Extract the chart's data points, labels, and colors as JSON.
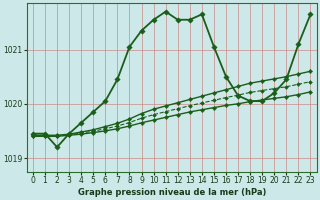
{
  "xlabel": "Graphe pression niveau de la mer (hPa)",
  "background_color": "#cce8e8",
  "line_color": "#1a5e1a",
  "yticks": [
    1019,
    1020,
    1021
  ],
  "xticks": [
    0,
    1,
    2,
    3,
    4,
    5,
    6,
    7,
    8,
    9,
    10,
    11,
    12,
    13,
    14,
    15,
    16,
    17,
    18,
    19,
    20,
    21,
    22,
    23
  ],
  "ylim": [
    1018.75,
    1021.85
  ],
  "xlim": [
    -0.5,
    23.5
  ],
  "series": [
    {
      "x": [
        0,
        1,
        2,
        3,
        4,
        5,
        6,
        7,
        8,
        9,
        10,
        11,
        12,
        13,
        14,
        15,
        16,
        17,
        18,
        19,
        20,
        21,
        22,
        23
      ],
      "y": [
        1019.45,
        1019.45,
        1019.2,
        1019.45,
        1019.65,
        1019.85,
        1020.05,
        1020.45,
        1021.05,
        1021.35,
        1021.55,
        1021.7,
        1021.55,
        1021.55,
        1021.65,
        1021.05,
        1020.5,
        1020.15,
        1020.05,
        1020.05,
        1020.2,
        1020.45,
        1021.1,
        1021.65
      ],
      "linestyle": "-",
      "markersize": 2.8,
      "linewidth": 1.3
    },
    {
      "x": [
        0,
        1,
        2,
        3,
        4,
        5,
        6,
        7,
        8,
        9,
        10,
        11,
        12,
        13,
        14,
        15,
        16,
        17,
        18,
        19,
        20,
        21,
        22,
        23
      ],
      "y": [
        1019.42,
        1019.42,
        1019.42,
        1019.44,
        1019.48,
        1019.52,
        1019.58,
        1019.64,
        1019.72,
        1019.82,
        1019.9,
        1019.96,
        1020.02,
        1020.08,
        1020.14,
        1020.2,
        1020.26,
        1020.32,
        1020.38,
        1020.42,
        1020.46,
        1020.5,
        1020.55,
        1020.6
      ],
      "linestyle": "-",
      "markersize": 2.2,
      "linewidth": 1.0
    },
    {
      "x": [
        0,
        1,
        2,
        3,
        4,
        5,
        6,
        7,
        8,
        9,
        10,
        11,
        12,
        13,
        14,
        15,
        16,
        17,
        18,
        19,
        20,
        21,
        22,
        23
      ],
      "y": [
        1019.4,
        1019.4,
        1019.4,
        1019.42,
        1019.44,
        1019.47,
        1019.5,
        1019.54,
        1019.59,
        1019.65,
        1019.7,
        1019.75,
        1019.8,
        1019.85,
        1019.89,
        1019.93,
        1019.97,
        1020.0,
        1020.04,
        1020.07,
        1020.1,
        1020.13,
        1020.17,
        1020.22
      ],
      "linestyle": "-",
      "markersize": 2.2,
      "linewidth": 1.0
    },
    {
      "x": [
        0,
        1,
        2,
        3,
        4,
        5,
        6,
        7,
        8,
        9,
        10,
        11,
        12,
        13,
        14,
        15,
        16,
        17,
        18,
        19,
        20,
        21,
        22,
        23
      ],
      "y": [
        1019.41,
        1019.41,
        1019.41,
        1019.43,
        1019.46,
        1019.495,
        1019.54,
        1019.59,
        1019.655,
        1019.735,
        1019.8,
        1019.855,
        1019.91,
        1019.965,
        1020.015,
        1020.065,
        1020.115,
        1020.16,
        1020.21,
        1020.245,
        1020.28,
        1020.315,
        1020.36,
        1020.41
      ],
      "linestyle": "--",
      "markersize": 2.0,
      "linewidth": 0.8
    }
  ]
}
